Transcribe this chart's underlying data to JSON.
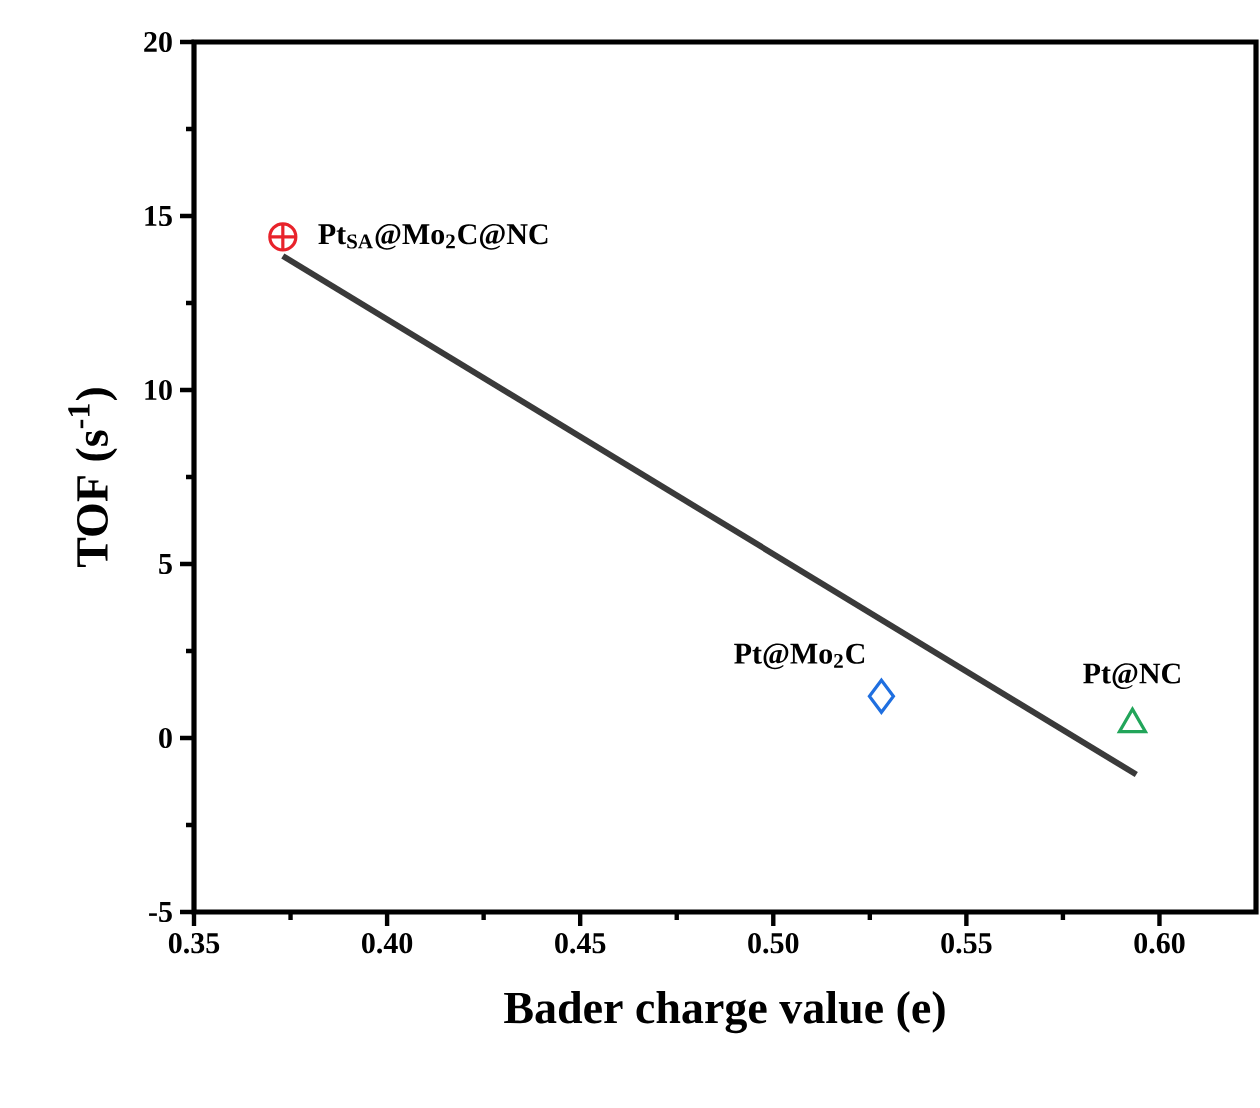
{
  "chart_data": {
    "type": "scatter",
    "xlabel": "Bader charge value (e)",
    "ylabel": "TOF (s$^{-1}$)",
    "xlim": [
      0.35,
      0.625
    ],
    "ylim": [
      -5,
      20
    ],
    "xticks": [
      {
        "value": 0.35,
        "label": "0.35"
      },
      {
        "value": 0.4,
        "label": "0.40"
      },
      {
        "value": 0.45,
        "label": "0.45"
      },
      {
        "value": 0.5,
        "label": "0.50"
      },
      {
        "value": 0.55,
        "label": "0.55"
      },
      {
        "value": 0.6,
        "label": "0.60"
      }
    ],
    "yticks": [
      -5,
      0,
      5,
      10,
      15,
      20
    ],
    "grid": false,
    "series": [
      {
        "name": "Pt$_{SA}$@Mo$_{2}$C@NC",
        "color": "#e8232b",
        "marker": "cross",
        "x": [
          0.373
        ],
        "values": [
          14.4
        ]
      },
      {
        "name": "Pt@Mo$_{2}$C",
        "color": "#1f6fe0",
        "marker": "diamond",
        "x": [
          0.528
        ],
        "values": [
          1.2
        ]
      },
      {
        "name": "Pt@NC",
        "color": "#22a55a",
        "marker": "triangle",
        "x": [
          0.593
        ],
        "values": [
          0.4
        ]
      },
      {
        "type": "line",
        "color": "#3a3a3a",
        "marker": "none",
        "x": [
          0.373,
          0.594
        ],
        "values": [
          13.85,
          -1.05
        ]
      }
    ]
  }
}
